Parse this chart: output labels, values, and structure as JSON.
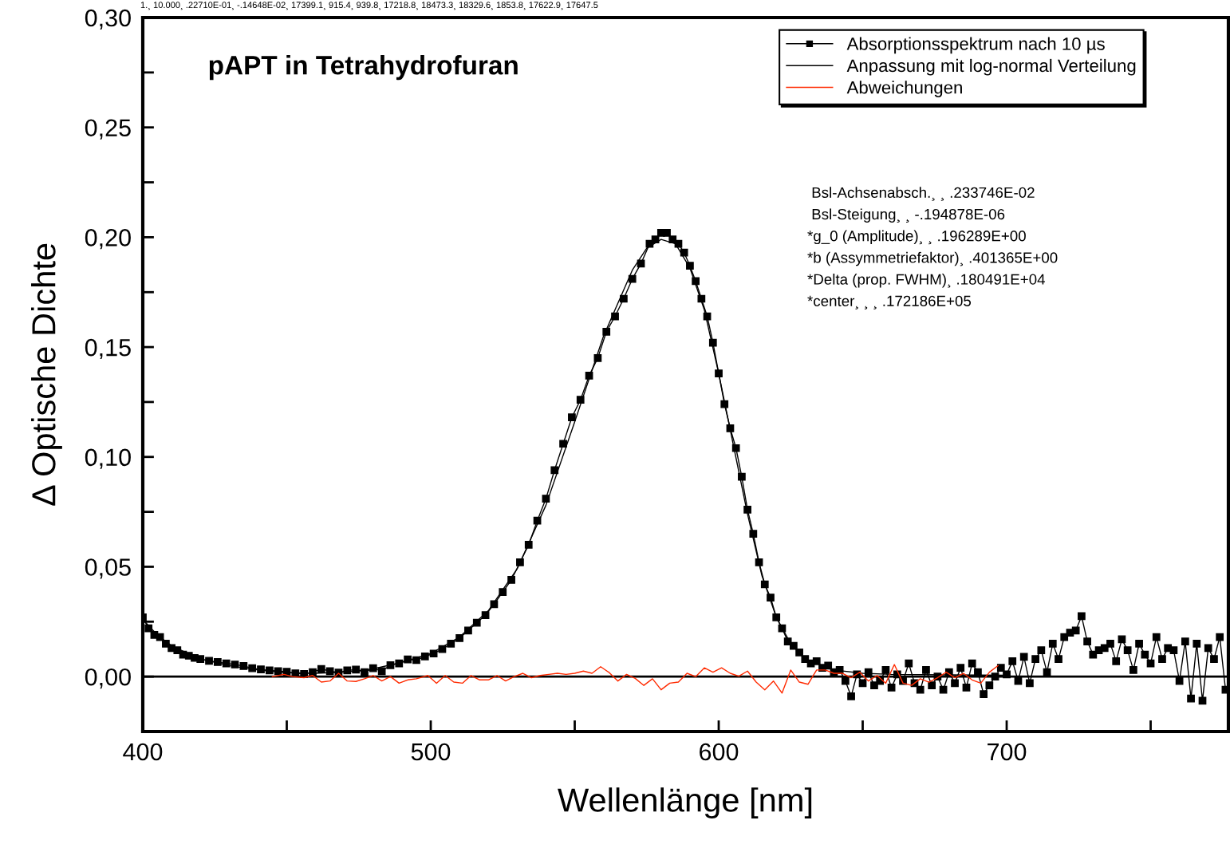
{
  "chart_data": {
    "type": "line",
    "title": "pAPT in Tetrahydrofuran",
    "xlabel": "Wellenlänge [nm]",
    "ylabel": "Δ Optische Dichte",
    "annotations": [
      "1.¸ 10.000¸ .22710E-01¸ -.14648E-02¸ 17399.1¸ 915.4¸ 939.8¸ 17218.8¸ 18473.3¸ 18329.6¸ 1853.8¸ 17622.9¸ 17647.5",
      " Bsl-Achsenabsch.¸ ¸ .233746E-02",
      " Bsl-Steigung¸ ¸ -.194878E-06",
      "*g_0 (Amplitude)¸ ¸ .196289E+00",
      "*b (Assymmetriefaktor)¸ .401365E+00",
      "*Delta (prop. FWHM)¸ .180491E+04",
      "*center¸ ¸ ¸ .172186E+05"
    ],
    "xlim": [
      400,
      777
    ],
    "ylim": [
      -0.025,
      0.3
    ],
    "xticks": [
      400,
      {
        "value": 450,
        "label": null
      },
      500,
      {
        "value": 550,
        "label": null
      },
      600,
      {
        "value": 650,
        "label": null
      },
      700,
      {
        "value": 750,
        "label": null
      }
    ],
    "yticks": [
      {
        "value": 0,
        "label": "0,00"
      },
      {
        "value": 0.025,
        "label": null
      },
      {
        "value": 0.05,
        "label": "0,05"
      },
      {
        "value": 0.075,
        "label": null
      },
      {
        "value": 0.1,
        "label": "0,10"
      },
      {
        "value": 0.125,
        "label": null
      },
      {
        "value": 0.15,
        "label": "0,15"
      },
      {
        "value": 0.175,
        "label": null
      },
      {
        "value": 0.2,
        "label": "0,20"
      },
      {
        "value": 0.225,
        "label": null
      },
      {
        "value": 0.25,
        "label": "0,25"
      },
      {
        "value": 0.275,
        "label": null
      },
      {
        "value": 0.3,
        "label": "0,30"
      }
    ],
    "grid": false,
    "legend": "top right",
    "ref_lines": [
      {
        "axis": "y",
        "value": 0,
        "color": "#000000",
        "line_style": "solid"
      }
    ],
    "series": [
      {
        "name": "Absorptionsspektrum nach 10 µs",
        "color": "#000000",
        "marker": "square",
        "line_style": "solid",
        "x": [
          400,
          402,
          404,
          406,
          408,
          410,
          412,
          414,
          416,
          418,
          420,
          423,
          426,
          429,
          432,
          435,
          438,
          441,
          444,
          447,
          450,
          453,
          456,
          459,
          462,
          465,
          468,
          471,
          474,
          477,
          480,
          483,
          486,
          489,
          492,
          495,
          498,
          501,
          504,
          507,
          510,
          513,
          516,
          519,
          522,
          525,
          528,
          531,
          534,
          537,
          540,
          543,
          546,
          549,
          552,
          555,
          558,
          561,
          564,
          567,
          570,
          573,
          576,
          578,
          580,
          582,
          584,
          586,
          588,
          590,
          592,
          594,
          596,
          598,
          600,
          602,
          604,
          606,
          608,
          610,
          612,
          614,
          616,
          618,
          620,
          622,
          624,
          626,
          628,
          630,
          632,
          634,
          636,
          638,
          640,
          642,
          644,
          646,
          648,
          650,
          652,
          654,
          656,
          658,
          660,
          662,
          664,
          666,
          668,
          670,
          672,
          674,
          676,
          678,
          680,
          682,
          684,
          686,
          688,
          690,
          692,
          694,
          696,
          698,
          700,
          702,
          704,
          706,
          708,
          710,
          712,
          714,
          716,
          718,
          720,
          722,
          724,
          726,
          728,
          730,
          732,
          734,
          736,
          738,
          740,
          742,
          744,
          746,
          748,
          750,
          752,
          754,
          756,
          758,
          760,
          762,
          764,
          766,
          768,
          770,
          772,
          774,
          776
        ],
        "values": [
          0.027,
          0.022,
          0.019,
          0.018,
          0.015,
          0.013,
          0.012,
          0.01,
          0.0095,
          0.0085,
          0.008,
          0.0072,
          0.0066,
          0.006,
          0.0055,
          0.0048,
          0.0038,
          0.0033,
          0.0028,
          0.0025,
          0.0022,
          0.0015,
          0.0012,
          0.002,
          0.0035,
          0.0025,
          0.0018,
          0.0028,
          0.0032,
          0.002,
          0.0038,
          0.0025,
          0.0052,
          0.006,
          0.0078,
          0.0075,
          0.0092,
          0.0105,
          0.0125,
          0.015,
          0.0175,
          0.021,
          0.0245,
          0.028,
          0.033,
          0.0385,
          0.044,
          0.052,
          0.06,
          0.071,
          0.081,
          0.094,
          0.106,
          0.118,
          0.126,
          0.137,
          0.145,
          0.157,
          0.164,
          0.172,
          0.181,
          0.188,
          0.197,
          0.199,
          0.202,
          0.202,
          0.199,
          0.197,
          0.193,
          0.187,
          0.18,
          0.172,
          0.164,
          0.152,
          0.138,
          0.124,
          0.113,
          0.104,
          0.091,
          0.076,
          0.065,
          0.052,
          0.042,
          0.036,
          0.027,
          0.022,
          0.016,
          0.014,
          0.011,
          0.008,
          0.006,
          0.007,
          0.004,
          0.005,
          0.002,
          0.003,
          -0.002,
          -0.009,
          0.001,
          -0.003,
          0.002,
          -0.004,
          -0.002,
          0.003,
          -0.005,
          0.001,
          -0.002,
          0.006,
          -0.003,
          -0.006,
          0.003,
          -0.004,
          0.0,
          -0.006,
          0.002,
          -0.003,
          0.004,
          -0.005,
          0.006,
          0.002,
          -0.008,
          -0.004,
          0.0,
          0.004,
          0.001,
          0.007,
          -0.002,
          0.009,
          -0.003,
          0.008,
          0.012,
          0.002,
          0.015,
          0.008,
          0.018,
          0.02,
          0.021,
          0.0275,
          0.016,
          0.01,
          0.012,
          0.013,
          0.015,
          0.007,
          0.017,
          0.012,
          0.003,
          0.015,
          0.01,
          0.006,
          0.018,
          0.008,
          0.013,
          0.012,
          -0.002,
          0.016,
          -0.01,
          0.015,
          -0.011,
          0.013,
          0.008,
          0.018,
          -0.006
        ]
      },
      {
        "name": "Anpassung mit log-normal Verteilung",
        "color": "#000000",
        "marker": "none",
        "line_style": "solid",
        "x": [
          400,
          405,
          410,
          420,
          430,
          440,
          450,
          460,
          470,
          480,
          490,
          500,
          510,
          520,
          530,
          540,
          550,
          560,
          570,
          575,
          580,
          585,
          590,
          595,
          600,
          605,
          610,
          615,
          620,
          625,
          630,
          640,
          650,
          660,
          680,
          700
        ],
        "values": [
          0.026,
          0.019,
          0.014,
          0.008,
          0.005,
          0.003,
          0.0018,
          0.0015,
          0.002,
          0.0035,
          0.0065,
          0.0105,
          0.018,
          0.03,
          0.049,
          0.078,
          0.116,
          0.155,
          0.185,
          0.195,
          0.199,
          0.197,
          0.186,
          0.167,
          0.138,
          0.106,
          0.074,
          0.046,
          0.027,
          0.015,
          0.008,
          0.003,
          0.0015,
          0.001,
          0.0008,
          0.0006
        ]
      },
      {
        "name": "Abweichungen",
        "color": "#ff2a00",
        "marker": "none",
        "line_style": "solid",
        "x": [
          445,
          449,
          452,
          456,
          459,
          462,
          465,
          468,
          471,
          474,
          477,
          480,
          483,
          486,
          489,
          492,
          495,
          499,
          502,
          505,
          508,
          511,
          514,
          517,
          520,
          523,
          526,
          529,
          532,
          535,
          538,
          541,
          544,
          547,
          550,
          553,
          556,
          559,
          562,
          565,
          568,
          571,
          574,
          577,
          580,
          583,
          586,
          589,
          592,
          595,
          598,
          601,
          604,
          607,
          610,
          613,
          616,
          619,
          622,
          625,
          628,
          631,
          634,
          637,
          640,
          643,
          646,
          649,
          652,
          655,
          658,
          661,
          664,
          667,
          670,
          673,
          676,
          679,
          682,
          685,
          688,
          691,
          694,
          697
        ],
        "values": [
          0,
          0.001,
          0,
          -0.0005,
          0.0005,
          -0.0025,
          -0.002,
          0.0015,
          -0.002,
          -0.0022,
          -0.001,
          0.0005,
          -0.002,
          0,
          -0.003,
          -0.0015,
          -0.001,
          0.0005,
          -0.003,
          0.0005,
          -0.0025,
          -0.003,
          0.0005,
          -0.0015,
          -0.0015,
          0.0005,
          -0.002,
          0,
          0.0015,
          -0.0005,
          0.0005,
          0.001,
          0.0015,
          0.001,
          0.0015,
          0.0025,
          0.0015,
          0.0045,
          0.0018,
          -0.002,
          0.001,
          -0.0008,
          -0.004,
          -0.001,
          -0.006,
          -0.003,
          -0.0025,
          0.0015,
          0,
          0.004,
          0.002,
          0.004,
          0.0015,
          0.0002,
          0.0025,
          -0.0025,
          -0.006,
          -0.002,
          -0.0075,
          0.003,
          -0.0025,
          -0.0035,
          0.003,
          0.003,
          0.0015,
          0.0015,
          -0.0005,
          0.002,
          -0.002,
          0.0005,
          -0.003,
          0.0055,
          -0.003,
          -0.004,
          -0.001,
          -0.0025,
          -0.0005,
          0.002,
          -0.0005,
          0.0015,
          -0.0015,
          -0.003,
          0.002,
          0.005
        ]
      }
    ]
  }
}
